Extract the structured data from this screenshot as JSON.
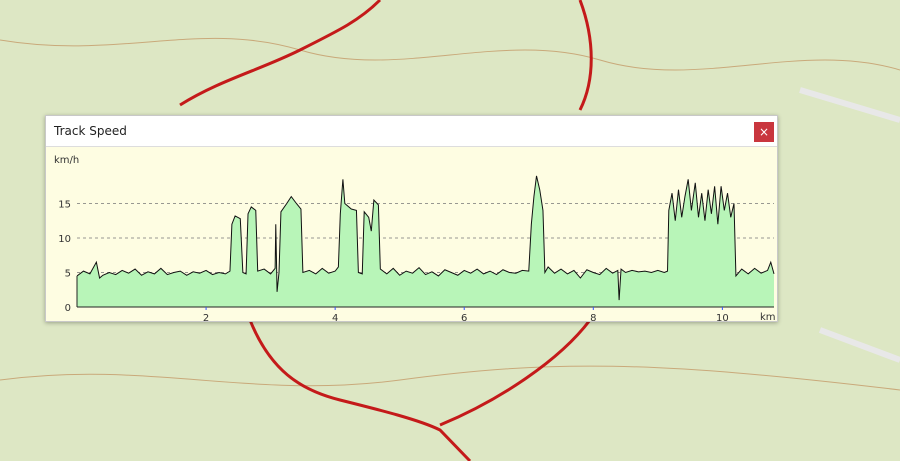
{
  "window": {
    "title": "Track Speed",
    "close_label": "×",
    "close_icon": "close-icon"
  },
  "colors": {
    "fill": "#b8f5b8",
    "line": "#111111",
    "background": "#fefde2",
    "close_button": "#c9363e",
    "grid": "#777777"
  },
  "chart_data": {
    "type": "area",
    "ylabel": "km/h",
    "xlabel": "km",
    "xlim": [
      0,
      10.8
    ],
    "ylim": [
      0,
      20
    ],
    "xticks": [
      2,
      4,
      6,
      8,
      10
    ],
    "yticks": [
      0,
      5,
      10,
      15
    ],
    "grid": "horizontal dashed at 5, 10, 15",
    "points": [
      [
        0,
        4.5
      ],
      [
        0.1,
        5.2
      ],
      [
        0.2,
        4.8
      ],
      [
        0.3,
        6.5
      ],
      [
        0.35,
        4.2
      ],
      [
        0.4,
        4.6
      ],
      [
        0.5,
        5.0
      ],
      [
        0.6,
        4.7
      ],
      [
        0.7,
        5.3
      ],
      [
        0.8,
        4.9
      ],
      [
        0.9,
        5.5
      ],
      [
        1.0,
        4.6
      ],
      [
        1.1,
        5.1
      ],
      [
        1.2,
        4.8
      ],
      [
        1.3,
        5.6
      ],
      [
        1.4,
        4.7
      ],
      [
        1.5,
        5.0
      ],
      [
        1.6,
        5.2
      ],
      [
        1.7,
        4.6
      ],
      [
        1.8,
        5.1
      ],
      [
        1.9,
        4.9
      ],
      [
        2.0,
        5.3
      ],
      [
        2.1,
        4.7
      ],
      [
        2.2,
        5.0
      ],
      [
        2.3,
        4.8
      ],
      [
        2.37,
        5.2
      ],
      [
        2.4,
        12.0
      ],
      [
        2.45,
        13.2
      ],
      [
        2.53,
        12.8
      ],
      [
        2.57,
        5.0
      ],
      [
        2.62,
        4.8
      ],
      [
        2.65,
        13.5
      ],
      [
        2.7,
        14.5
      ],
      [
        2.77,
        14.0
      ],
      [
        2.8,
        5.2
      ],
      [
        2.9,
        5.5
      ],
      [
        3.0,
        4.8
      ],
      [
        3.07,
        5.6
      ],
      [
        3.08,
        12.0
      ],
      [
        3.1,
        2.2
      ],
      [
        3.13,
        5.0
      ],
      [
        3.16,
        13.8
      ],
      [
        3.25,
        15.0
      ],
      [
        3.32,
        16.0
      ],
      [
        3.4,
        15.0
      ],
      [
        3.47,
        14.2
      ],
      [
        3.5,
        5.0
      ],
      [
        3.6,
        5.3
      ],
      [
        3.7,
        4.8
      ],
      [
        3.8,
        5.6
      ],
      [
        3.9,
        4.9
      ],
      [
        4.0,
        5.2
      ],
      [
        4.05,
        5.8
      ],
      [
        4.08,
        13.5
      ],
      [
        4.12,
        18.5
      ],
      [
        4.15,
        15.0
      ],
      [
        4.25,
        14.2
      ],
      [
        4.33,
        14.0
      ],
      [
        4.36,
        5.0
      ],
      [
        4.42,
        4.8
      ],
      [
        4.45,
        13.8
      ],
      [
        4.52,
        13.0
      ],
      [
        4.56,
        11.0
      ],
      [
        4.6,
        15.5
      ],
      [
        4.67,
        14.8
      ],
      [
        4.7,
        5.5
      ],
      [
        4.8,
        4.8
      ],
      [
        4.9,
        5.6
      ],
      [
        5.0,
        4.6
      ],
      [
        5.1,
        5.2
      ],
      [
        5.2,
        4.9
      ],
      [
        5.3,
        5.7
      ],
      [
        5.4,
        4.7
      ],
      [
        5.5,
        5.1
      ],
      [
        5.6,
        4.5
      ],
      [
        5.7,
        5.4
      ],
      [
        5.8,
        5.0
      ],
      [
        5.9,
        4.6
      ],
      [
        6.0,
        5.3
      ],
      [
        6.1,
        4.9
      ],
      [
        6.2,
        5.5
      ],
      [
        6.3,
        4.8
      ],
      [
        6.4,
        5.2
      ],
      [
        6.5,
        4.7
      ],
      [
        6.6,
        5.4
      ],
      [
        6.7,
        5.0
      ],
      [
        6.8,
        4.9
      ],
      [
        6.9,
        5.3
      ],
      [
        7.0,
        5.2
      ],
      [
        7.04,
        12.0
      ],
      [
        7.08,
        16.0
      ],
      [
        7.12,
        19.0
      ],
      [
        7.17,
        17.0
      ],
      [
        7.22,
        14.0
      ],
      [
        7.25,
        5.0
      ],
      [
        7.3,
        5.8
      ],
      [
        7.4,
        4.9
      ],
      [
        7.5,
        5.5
      ],
      [
        7.6,
        4.8
      ],
      [
        7.7,
        5.3
      ],
      [
        7.8,
        4.2
      ],
      [
        7.9,
        5.4
      ],
      [
        8.0,
        5.0
      ],
      [
        8.1,
        4.7
      ],
      [
        8.2,
        5.6
      ],
      [
        8.3,
        4.9
      ],
      [
        8.38,
        5.3
      ],
      [
        8.4,
        1.0
      ],
      [
        8.43,
        5.5
      ],
      [
        8.5,
        5.0
      ],
      [
        8.6,
        5.3
      ],
      [
        8.7,
        5.1
      ],
      [
        8.8,
        5.2
      ],
      [
        8.9,
        5.0
      ],
      [
        9.0,
        5.3
      ],
      [
        9.1,
        5.0
      ],
      [
        9.15,
        5.2
      ],
      [
        9.17,
        14.0
      ],
      [
        9.22,
        16.5
      ],
      [
        9.27,
        12.5
      ],
      [
        9.32,
        17.0
      ],
      [
        9.37,
        13.0
      ],
      [
        9.42,
        16.0
      ],
      [
        9.47,
        18.5
      ],
      [
        9.52,
        14.0
      ],
      [
        9.58,
        18.0
      ],
      [
        9.63,
        13.0
      ],
      [
        9.68,
        16.5
      ],
      [
        9.73,
        12.5
      ],
      [
        9.78,
        17.0
      ],
      [
        9.83,
        13.5
      ],
      [
        9.88,
        17.5
      ],
      [
        9.93,
        12.0
      ],
      [
        9.98,
        17.5
      ],
      [
        10.03,
        14.0
      ],
      [
        10.08,
        16.5
      ],
      [
        10.13,
        13.0
      ],
      [
        10.18,
        15.0
      ],
      [
        10.21,
        4.5
      ],
      [
        10.3,
        5.5
      ],
      [
        10.4,
        4.8
      ],
      [
        10.5,
        5.6
      ],
      [
        10.6,
        4.9
      ],
      [
        10.7,
        5.3
      ],
      [
        10.75,
        6.5
      ],
      [
        10.8,
        4.8
      ]
    ]
  }
}
